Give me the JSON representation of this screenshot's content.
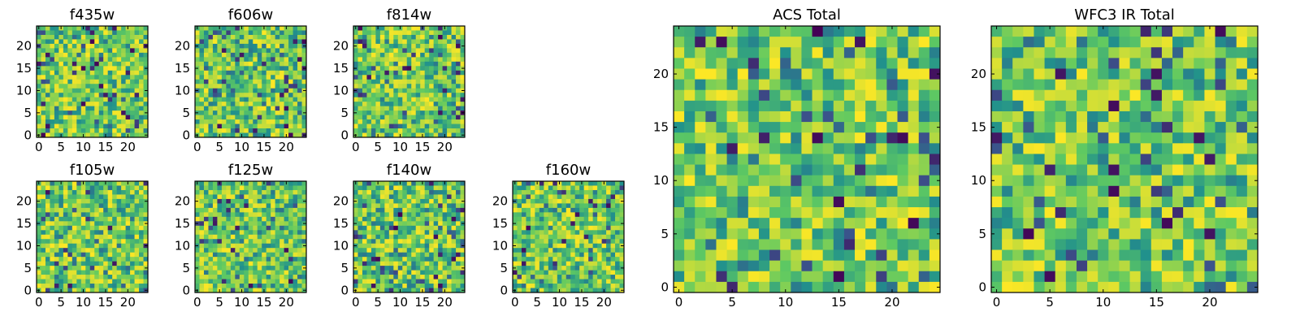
{
  "chart_data": [
    {
      "type": "heatmap",
      "title": "f435w",
      "xticks": [
        "0",
        "5",
        "10",
        "15",
        "20"
      ],
      "yticks": [
        "0",
        "5",
        "10",
        "15",
        "20"
      ],
      "xlim": [
        0,
        25
      ],
      "ylim": [
        0,
        25
      ],
      "grid_size": 25,
      "colormap": "viridis",
      "seed": 11
    },
    {
      "type": "heatmap",
      "title": "f606w",
      "xticks": [
        "0",
        "5",
        "10",
        "15",
        "20"
      ],
      "yticks": [
        "0",
        "5",
        "10",
        "15",
        "20"
      ],
      "xlim": [
        0,
        25
      ],
      "ylim": [
        0,
        25
      ],
      "grid_size": 25,
      "colormap": "viridis",
      "seed": 23
    },
    {
      "type": "heatmap",
      "title": "f814w",
      "xticks": [
        "0",
        "5",
        "10",
        "15",
        "20"
      ],
      "yticks": [
        "0",
        "5",
        "10",
        "15",
        "20"
      ],
      "xlim": [
        0,
        25
      ],
      "ylim": [
        0,
        25
      ],
      "grid_size": 25,
      "colormap": "viridis",
      "seed": 37
    },
    {
      "type": "heatmap",
      "title": "f105w",
      "xticks": [
        "0",
        "5",
        "10",
        "15",
        "20"
      ],
      "yticks": [
        "0",
        "5",
        "10",
        "15",
        "20"
      ],
      "xlim": [
        0,
        25
      ],
      "ylim": [
        0,
        25
      ],
      "grid_size": 25,
      "colormap": "viridis",
      "seed": 41
    },
    {
      "type": "heatmap",
      "title": "f125w",
      "xticks": [
        "0",
        "5",
        "10",
        "15",
        "20"
      ],
      "yticks": [
        "0",
        "5",
        "10",
        "15",
        "20"
      ],
      "xlim": [
        0,
        25
      ],
      "ylim": [
        0,
        25
      ],
      "grid_size": 25,
      "colormap": "viridis",
      "seed": 53
    },
    {
      "type": "heatmap",
      "title": "f140w",
      "xticks": [
        "0",
        "5",
        "10",
        "15",
        "20"
      ],
      "yticks": [
        "0",
        "5",
        "10",
        "15",
        "20"
      ],
      "xlim": [
        0,
        25
      ],
      "ylim": [
        0,
        25
      ],
      "grid_size": 25,
      "colormap": "viridis",
      "seed": 67
    },
    {
      "type": "heatmap",
      "title": "f160w",
      "xticks": [
        "0",
        "5",
        "10",
        "15",
        "20"
      ],
      "yticks": [
        "0",
        "5",
        "10",
        "15",
        "20"
      ],
      "xlim": [
        0,
        25
      ],
      "ylim": [
        0,
        25
      ],
      "grid_size": 25,
      "colormap": "viridis",
      "seed": 79
    },
    {
      "type": "heatmap",
      "title": "ACS Total",
      "xticks": [
        "0",
        "5",
        "10",
        "15",
        "20"
      ],
      "yticks": [
        "0",
        "5",
        "10",
        "15",
        "20"
      ],
      "xlim": [
        0,
        25
      ],
      "ylim": [
        0,
        25
      ],
      "grid_size": 25,
      "colormap": "viridis",
      "seed": 97
    },
    {
      "type": "heatmap",
      "title": "WFC3 IR Total",
      "xticks": [
        "0",
        "5",
        "10",
        "15",
        "20"
      ],
      "yticks": [
        "0",
        "5",
        "10",
        "15",
        "20"
      ],
      "xlim": [
        0,
        25
      ],
      "ylim": [
        0,
        25
      ],
      "grid_size": 25,
      "colormap": "viridis",
      "seed": 131
    }
  ],
  "colormap_stops": [
    "#440154",
    "#3b528b",
    "#21918c",
    "#5ec962",
    "#fde725"
  ]
}
